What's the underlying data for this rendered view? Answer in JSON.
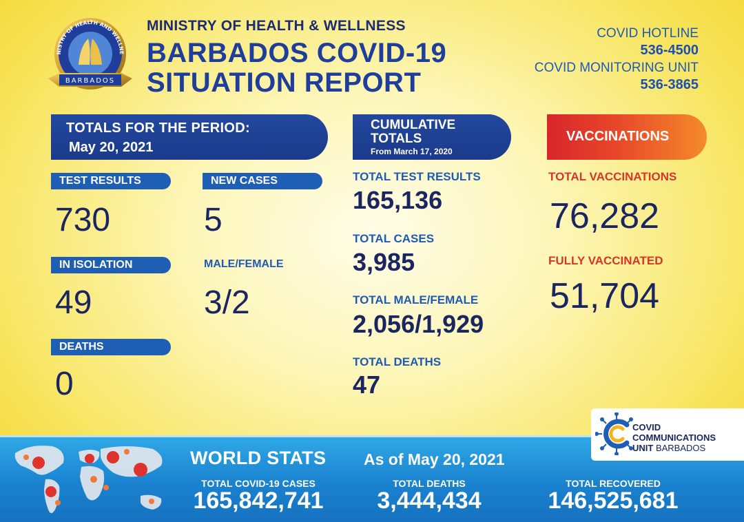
{
  "header": {
    "ministry": "MINISTRY OF HEALTH & WELLNESS",
    "title_line1": "BARBADOS COVID-19",
    "title_line2": "SITUATION REPORT",
    "seal_text_top": "MINISTRY OF HEALTH AND WELLNESS",
    "seal_text_bottom": "BARBADOS",
    "hotline_label": "COVID HOTLINE",
    "hotline_number": "536-4500",
    "monitoring_label": "COVID MONITORING UNIT",
    "monitoring_number": "536-3865"
  },
  "period": {
    "banner_line1": "TOTALS FOR THE PERIOD:",
    "banner_line2": "May 20, 2021",
    "test_results_label": "TEST RESULTS",
    "test_results": "730",
    "new_cases_label": "NEW CASES",
    "new_cases": "5",
    "isolation_label": "IN ISOLATION",
    "isolation": "49",
    "male_female_label": "MALE/FEMALE",
    "male_female": "3/2",
    "deaths_label": "DEATHS",
    "deaths": "0"
  },
  "cumulative": {
    "banner_line1": "CUMULATIVE",
    "banner_line2": "TOTALS",
    "banner_line3": "From March 17, 2020",
    "test_results_label": "TOTAL TEST RESULTS",
    "test_results": "165,136",
    "cases_label": "TOTAL CASES",
    "cases": "3,985",
    "male_female_label": "TOTAL MALE/FEMALE",
    "male_female": "2,056/1,929",
    "deaths_label": "TOTAL DEATHS",
    "deaths": "47"
  },
  "vaccinations": {
    "banner": "VACCINATIONS",
    "total_label": "TOTAL VACCINATIONS",
    "total": "76,282",
    "fully_label": "FULLY VACCINATED",
    "fully": "51,704"
  },
  "world": {
    "title": "WORLD STATS",
    "as_of": "As of May 20, 2021",
    "cases_label": "TOTAL COVID-19 CASES",
    "cases": "165,842,741",
    "deaths_label": "TOTAL DEATHS",
    "deaths": "3,444,434",
    "recovered_label": "TOTAL RECOVERED",
    "recovered": "146,525,681"
  },
  "ccu": {
    "line1": "COVID",
    "line2": "COMMUNICATIONS",
    "line3a": "UNIT",
    "line3b": " BARBADOS"
  },
  "colors": {
    "navy": "#1b2560",
    "blue": "#1f5ab4",
    "red": "#d6362a",
    "yellow": "#f7e45c"
  }
}
